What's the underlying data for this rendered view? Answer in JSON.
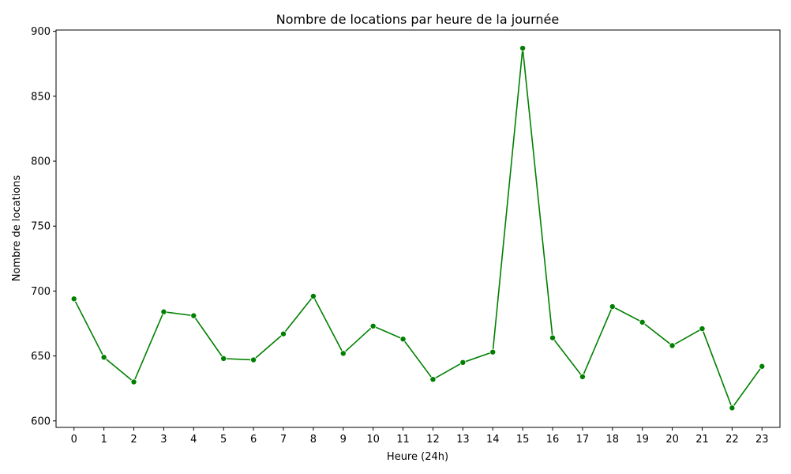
{
  "chart_data": {
    "type": "line",
    "title": "Nombre de locations par heure de la journée",
    "xlabel": "Heure (24h)",
    "ylabel": "Nombre de locations",
    "x": [
      0,
      1,
      2,
      3,
      4,
      5,
      6,
      7,
      8,
      9,
      10,
      11,
      12,
      13,
      14,
      15,
      16,
      17,
      18,
      19,
      20,
      21,
      22,
      23
    ],
    "series": [
      {
        "values": [
          694,
          649,
          630,
          684,
          681,
          648,
          647,
          667,
          696,
          652,
          673,
          663,
          632,
          645,
          653,
          887,
          664,
          634,
          688,
          676,
          658,
          671,
          610,
          642
        ],
        "color": "#008000",
        "marker": "circle"
      }
    ],
    "xlim": [
      -0.6,
      23.6
    ],
    "ylim": [
      595,
      901
    ],
    "yticks": [
      600,
      650,
      700,
      750,
      800,
      850,
      900
    ],
    "grid": false,
    "legend": "none"
  }
}
